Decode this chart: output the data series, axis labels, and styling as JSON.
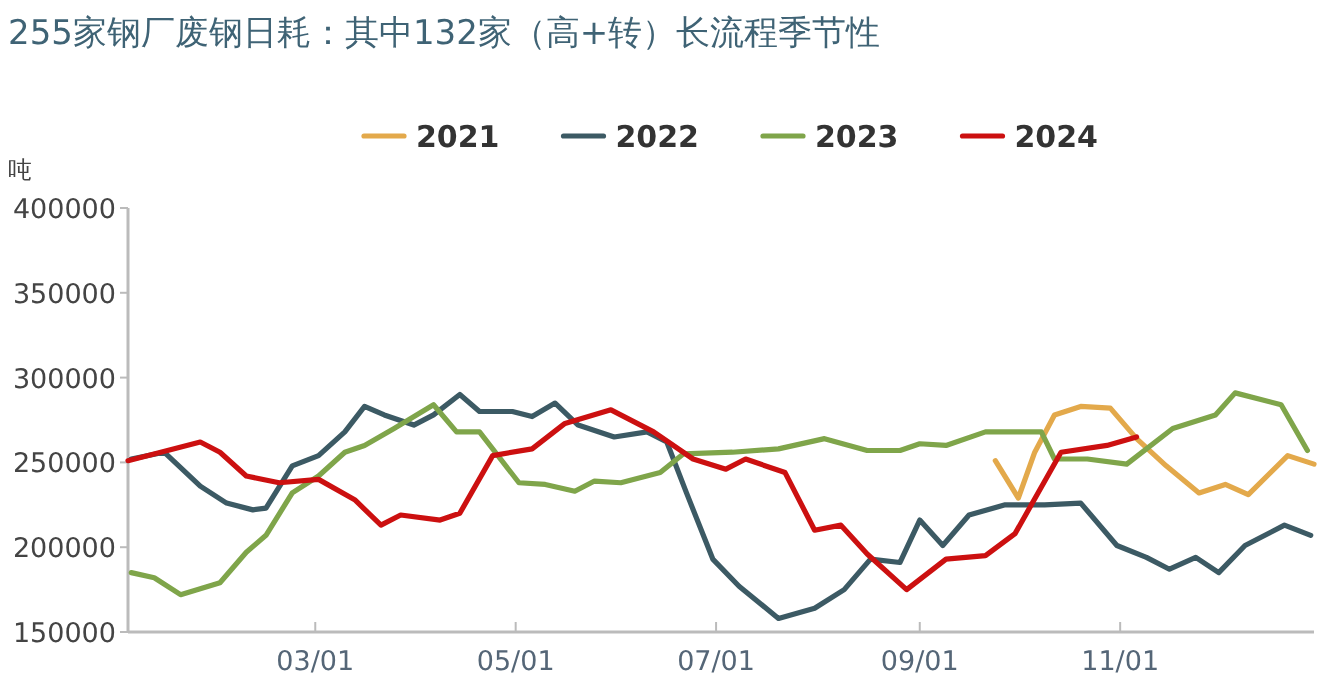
{
  "chart_data": {
    "type": "line",
    "title": "255家钢厂废钢日耗：其中132家（高+转）长流程季节性",
    "ylabel": "吨",
    "legend": "top",
    "grid": false,
    "marker": "none",
    "line_style": "solid",
    "xlim": [
      "--01-03",
      "--12-30"
    ],
    "xticks": [
      {
        "value": "--03-01",
        "label": "03/01"
      },
      {
        "value": "--05-01",
        "label": "05/01"
      },
      {
        "value": "--07-01",
        "label": "07/01"
      },
      {
        "value": "--09-01",
        "label": "09/01"
      },
      {
        "value": "--11-01",
        "label": "11/01"
      }
    ],
    "ylim": [
      150000,
      400000
    ],
    "yticks": [
      150000,
      200000,
      250000,
      300000,
      350000,
      400000
    ],
    "series": [
      {
        "name": "2021",
        "color": "#e3a94b",
        "x": [
          "--09-24",
          "--10-01",
          "--10-06",
          "--10-12",
          "--10-20",
          "--10-29",
          "--11-06",
          "--11-15",
          "--11-25",
          "--12-03",
          "--12-10",
          "--12-22",
          "--12-30"
        ],
        "values": [
          251000,
          229000,
          256000,
          278000,
          283000,
          282000,
          264000,
          248000,
          232000,
          237000,
          231000,
          254000,
          249000
        ]
      },
      {
        "name": "2022",
        "color": "#3c5a64",
        "x": [
          "--01-04",
          "--01-14",
          "--01-25",
          "--02-02",
          "--02-10",
          "--02-14",
          "--02-22",
          "--03-02",
          "--03-10",
          "--03-16",
          "--03-22",
          "--03-31",
          "--04-06",
          "--04-14",
          "--04-20",
          "--04-30",
          "--05-06",
          "--05-13",
          "--05-20",
          "--05-31",
          "--06-10",
          "--06-16",
          "--06-22",
          "--06-30",
          "--07-08",
          "--07-20",
          "--07-31",
          "--08-09",
          "--08-17",
          "--08-26",
          "--09-01",
          "--09-08",
          "--09-16",
          "--09-27",
          "--10-09",
          "--10-20",
          "--10-31",
          "--11-09",
          "--11-16",
          "--11-24",
          "--12-01",
          "--12-09",
          "--12-21",
          "--12-29"
        ],
        "values": [
          252000,
          256000,
          236000,
          226000,
          222000,
          223000,
          248000,
          254000,
          268000,
          283000,
          278000,
          272000,
          278000,
          290000,
          280000,
          280000,
          277000,
          285000,
          272000,
          265000,
          268000,
          262000,
          232000,
          193000,
          177000,
          158000,
          164000,
          175000,
          193000,
          191000,
          216000,
          201000,
          219000,
          225000,
          225000,
          226000,
          201000,
          194000,
          187000,
          194000,
          185000,
          201000,
          213000,
          207000
        ]
      },
      {
        "name": "2023",
        "color": "#7fa54a",
        "x": [
          "--01-04",
          "--01-11",
          "--01-19",
          "--01-31",
          "--02-08",
          "--02-14",
          "--02-22",
          "--03-02",
          "--03-10",
          "--03-16",
          "--03-25",
          "--04-06",
          "--04-13",
          "--04-20",
          "--05-02",
          "--05-10",
          "--05-19",
          "--05-25",
          "--06-02",
          "--06-14",
          "--06-21",
          "--07-06",
          "--07-20",
          "--08-03",
          "--08-16",
          "--08-26",
          "--09-01",
          "--09-09",
          "--09-21",
          "--10-08",
          "--10-12",
          "--10-22",
          "--11-03",
          "--11-17",
          "--11-30",
          "--12-06",
          "--12-20",
          "--12-28"
        ],
        "values": [
          185000,
          182000,
          172000,
          179000,
          197000,
          207000,
          232000,
          242000,
          256000,
          260000,
          270000,
          284000,
          268000,
          268000,
          238000,
          237000,
          233000,
          239000,
          238000,
          244000,
          255000,
          256000,
          258000,
          264000,
          257000,
          257000,
          261000,
          260000,
          268000,
          268000,
          252000,
          252000,
          249000,
          270000,
          278000,
          291000,
          284000,
          257000
        ]
      },
      {
        "name": "2024",
        "color": "#cc1010",
        "x": [
          "--01-03",
          "--01-25",
          "--01-31",
          "--02-08",
          "--02-18",
          "--03-02",
          "--03-13",
          "--03-21",
          "--03-27",
          "--04-08",
          "--04-14",
          "--04-24",
          "--05-06",
          "--05-16",
          "--05-30",
          "--06-12",
          "--06-24",
          "--07-04",
          "--07-10",
          "--07-22",
          "--07-31",
          "--08-08",
          "--08-16",
          "--08-28",
          "--09-09",
          "--09-21",
          "--09-30",
          "--10-14",
          "--10-28",
          "--11-06"
        ],
        "values": [
          251000,
          262000,
          256000,
          242000,
          238000,
          240000,
          228000,
          213000,
          219000,
          216000,
          220000,
          254000,
          258000,
          273000,
          281000,
          268000,
          252000,
          246000,
          252000,
          244000,
          210000,
          213000,
          196000,
          175000,
          193000,
          195000,
          208000,
          256000,
          260000,
          265000
        ]
      }
    ]
  }
}
